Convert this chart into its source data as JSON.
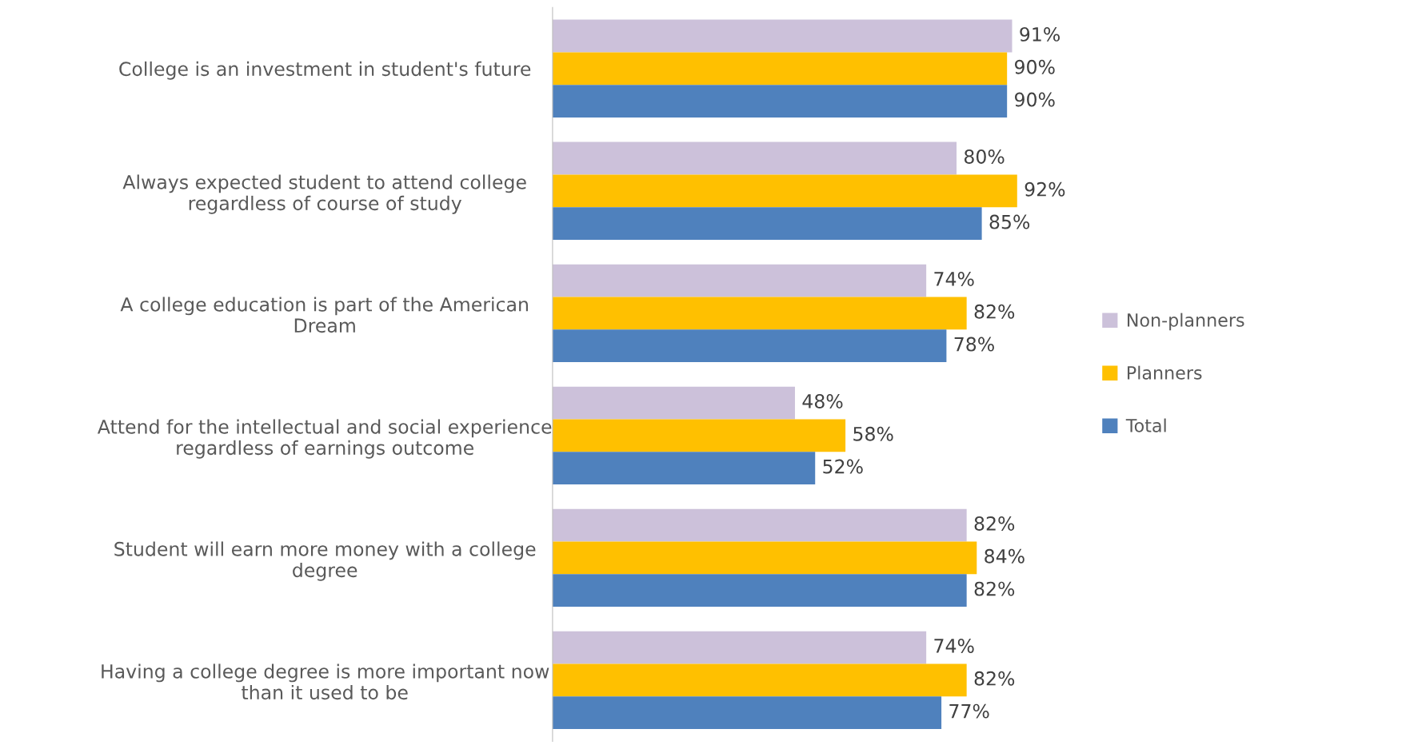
{
  "chart_data": {
    "type": "bar",
    "orientation": "horizontal",
    "categories": [
      "College is an investment in student's future",
      "Always expected student to attend college\nregardless of course of study",
      "A college education is part of the American\nDream",
      "Attend for the intellectual and social experience\nregardless of earnings outcome",
      "Student will earn more money with a college\ndegree",
      "Having a college degree is more important now\nthan it used to be"
    ],
    "series": [
      {
        "name": "Non-planners",
        "color": "#ccc1da",
        "values": [
          91,
          80,
          74,
          48,
          82,
          74
        ],
        "value_labels": [
          "91%",
          "80%",
          "74%",
          "48%",
          "82%",
          "74%"
        ]
      },
      {
        "name": "Planners",
        "color": "#ffc000",
        "values": [
          90,
          92,
          82,
          58,
          84,
          82
        ],
        "value_labels": [
          "90%",
          "92%",
          "82%",
          "58%",
          "84%",
          "82%"
        ]
      },
      {
        "name": "Total",
        "color": "#4f81bd",
        "values": [
          90,
          85,
          78,
          52,
          82,
          77
        ],
        "value_labels": [
          "90%",
          "85%",
          "78%",
          "52%",
          "82%",
          "77%"
        ]
      }
    ],
    "legend": "right",
    "grid": false
  }
}
